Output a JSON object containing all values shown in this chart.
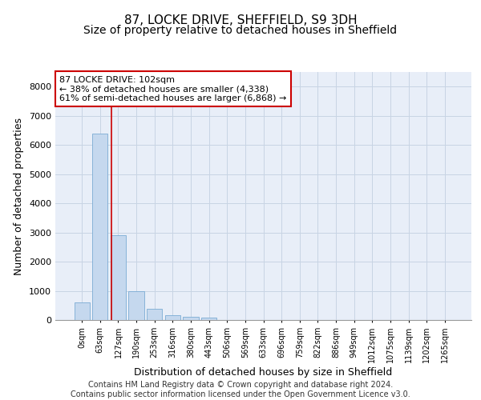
{
  "title_line1": "87, LOCKE DRIVE, SHEFFIELD, S9 3DH",
  "title_line2": "Size of property relative to detached houses in Sheffield",
  "xlabel": "Distribution of detached houses by size in Sheffield",
  "ylabel": "Number of detached properties",
  "categories": [
    "0sqm",
    "63sqm",
    "127sqm",
    "190sqm",
    "253sqm",
    "316sqm",
    "380sqm",
    "443sqm",
    "506sqm",
    "569sqm",
    "633sqm",
    "696sqm",
    "759sqm",
    "822sqm",
    "886sqm",
    "949sqm",
    "1012sqm",
    "1075sqm",
    "1139sqm",
    "1202sqm",
    "1265sqm"
  ],
  "values": [
    600,
    6400,
    2900,
    1000,
    380,
    170,
    110,
    80,
    0,
    0,
    0,
    0,
    0,
    0,
    0,
    0,
    0,
    0,
    0,
    0,
    0
  ],
  "bar_color": "#c5d8ee",
  "bar_edge_color": "#7aacd4",
  "vline_x": 1.62,
  "vline_color": "#cc0000",
  "annotation_text": "87 LOCKE DRIVE: 102sqm\n← 38% of detached houses are smaller (4,338)\n61% of semi-detached houses are larger (6,868) →",
  "annotation_box_color": "#ffffff",
  "annotation_border_color": "#cc0000",
  "ylim": [
    0,
    8500
  ],
  "yticks": [
    0,
    1000,
    2000,
    3000,
    4000,
    5000,
    6000,
    7000,
    8000
  ],
  "grid_color": "#c8d4e4",
  "bg_color": "#e8eef8",
  "footnote": "Contains HM Land Registry data © Crown copyright and database right 2024.\nContains public sector information licensed under the Open Government Licence v3.0.",
  "title_fontsize": 11,
  "subtitle_fontsize": 10,
  "ylabel_fontsize": 9,
  "xlabel_fontsize": 9,
  "tick_fontsize": 8,
  "annotation_fontsize": 8,
  "footnote_fontsize": 7
}
